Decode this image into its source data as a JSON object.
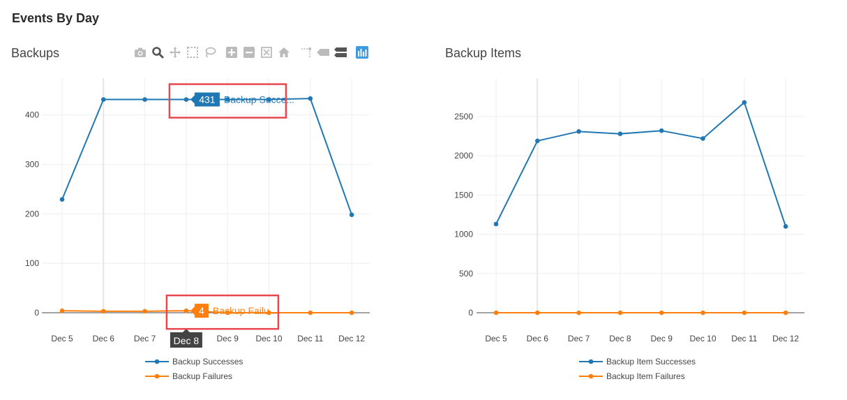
{
  "page": {
    "title": "Events By Day"
  },
  "toolbar": {
    "icons": [
      "camera-icon",
      "zoom-icon",
      "pan-icon",
      "box-select-icon",
      "lasso-select-icon",
      "zoom-in-icon",
      "zoom-out-icon",
      "autoscale-icon",
      "reset-axes-icon",
      "spike-lines-icon",
      "hover-closest-icon",
      "hover-compare-icon",
      "plotly-logo-icon"
    ]
  },
  "colors": {
    "successes": "#1f77b4",
    "failures": "#ff7f0e",
    "highlight": "#e8474e"
  },
  "chart_data": [
    {
      "type": "line",
      "title": "Backups",
      "categories": [
        "Dec 5",
        "Dec 6",
        "Dec 7",
        "Dec 8",
        "Dec 9",
        "Dec 10",
        "Dec 11",
        "Dec 12"
      ],
      "ylim": [
        0,
        460
      ],
      "yticks": [
        0,
        100,
        200,
        300,
        400
      ],
      "grid": true,
      "legend": "bottom-center",
      "series": [
        {
          "name": "Backup Successes",
          "values": [
            229,
            431,
            431,
            431,
            431,
            431,
            433,
            198
          ]
        },
        {
          "name": "Backup Failures",
          "values": [
            4,
            3,
            3,
            4,
            0,
            0,
            0,
            0
          ]
        }
      ],
      "hover": {
        "category": "Dec 8",
        "labels": [
          {
            "series": 0,
            "value": "431",
            "text": "Backup Succe..."
          },
          {
            "series": 1,
            "value": "4",
            "text": "Backup Failu..."
          }
        ]
      }
    },
    {
      "type": "line",
      "title": "Backup Items",
      "categories": [
        "Dec 5",
        "Dec 6",
        "Dec 7",
        "Dec 8",
        "Dec 9",
        "Dec 10",
        "Dec 11",
        "Dec 12"
      ],
      "ylim": [
        0,
        2900
      ],
      "yticks": [
        0,
        500,
        1000,
        1500,
        2000,
        2500
      ],
      "grid": true,
      "legend": "bottom-center",
      "series": [
        {
          "name": "Backup Item Successes",
          "values": [
            1130,
            2190,
            2310,
            2280,
            2320,
            2220,
            2680,
            1100
          ]
        },
        {
          "name": "Backup Item Failures",
          "values": [
            0,
            0,
            0,
            0,
            0,
            0,
            0,
            0
          ]
        }
      ]
    }
  ]
}
